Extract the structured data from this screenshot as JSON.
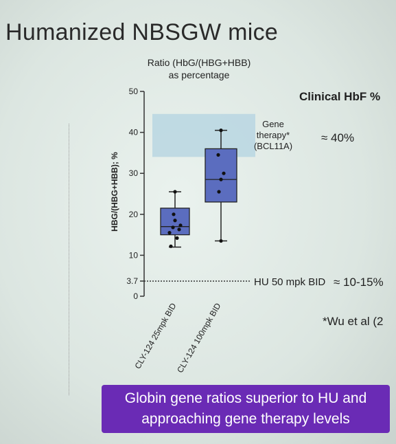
{
  "slide": {
    "title": "Humanized NBSGW mice",
    "banner_line1": "Globin gene ratios superior to HU and",
    "banner_line2": "approaching gene therapy levels"
  },
  "chart_data": {
    "type": "box",
    "title_line1": "Ratio (HbG/(HBG+HBB)",
    "title_line2": "as percentage",
    "ylabel": "HBG/(HBG+HBB); %",
    "y_ticks": [
      "0",
      "3.7",
      "10",
      "20",
      "30",
      "40",
      "50"
    ],
    "y_tick_values": [
      0,
      3.7,
      10,
      20,
      30,
      40,
      50
    ],
    "ylim": [
      0,
      50
    ],
    "categories": [
      "CLY-124 25mpk BID",
      "CLY-124 100mpk BID"
    ],
    "boxes": [
      {
        "name": "CLY-124 25mpk BID",
        "min": 12,
        "q1": 15,
        "median": 17,
        "q3": 21.5,
        "max": 25.5,
        "points": [
          12.2,
          14.2,
          15.5,
          16.3,
          16.8,
          17.3,
          18.5,
          20,
          25.5
        ]
      },
      {
        "name": "CLY-124 100mpk BID",
        "min": 13.5,
        "q1": 23,
        "median": 28.5,
        "q3": 36,
        "max": 40.5,
        "points": [
          13.5,
          25.5,
          28.5,
          30,
          34.5,
          40.5
        ]
      }
    ],
    "reference_band": {
      "from": 34,
      "to": 44.5,
      "label_line1": "Gene",
      "label_line2": "therapy*",
      "label_line3": "(BCL11A)"
    },
    "reference_line": {
      "value": 3.7,
      "label": "HU 50 mpk BID"
    },
    "right_header": "Clinical HbF %",
    "right_values": [
      "≈ 40%",
      "≈ 10-15%"
    ],
    "footnote": "*Wu et al (2"
  },
  "colors": {
    "box_fill": "#5b6dbf",
    "band_fill": "#b9d6e2",
    "banner": "#6a2bb5"
  }
}
